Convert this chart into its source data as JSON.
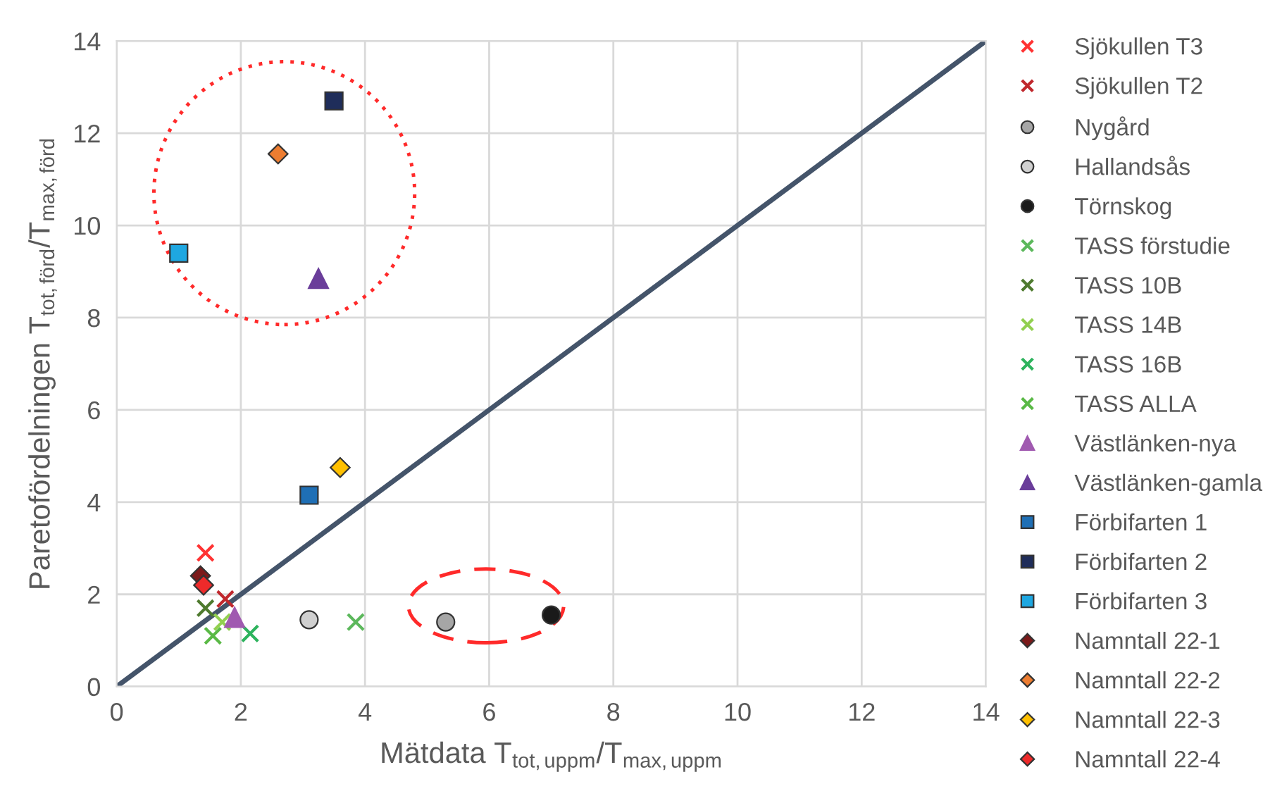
{
  "chart_data": {
    "type": "scatter",
    "xlabel": "Mätdata T$_{tot,uppm}$/T$_{max,uppm}$",
    "ylabel": "Paretofördelningen T$_{tot,förd}$/T$_{max,förd}$",
    "xlim": [
      0,
      14
    ],
    "ylim": [
      0,
      14
    ],
    "xticks": [
      0,
      2,
      4,
      6,
      8,
      10,
      12,
      14
    ],
    "yticks": [
      0,
      2,
      4,
      6,
      8,
      10,
      12,
      14
    ],
    "grid": true,
    "legend": "right",
    "series": [
      {
        "type": "line",
        "color": "#44546a",
        "x": [
          0,
          14
        ],
        "values": [
          0,
          14
        ]
      },
      {
        "name": "Sjökullen T3",
        "color": "#ff3333",
        "marker": "cross",
        "x": [
          1.43
        ],
        "values": [
          2.9
        ]
      },
      {
        "name": "Sjökullen T2",
        "color": "#c0282d",
        "marker": "cross",
        "x": [
          1.75
        ],
        "values": [
          1.9
        ]
      },
      {
        "name": "Nygård",
        "color": "#a6a6a6",
        "marker": "circle",
        "x": [
          5.3
        ],
        "values": [
          1.4
        ]
      },
      {
        "name": "Hallandsås",
        "color": "#d0d0d0",
        "marker": "circle",
        "x": [
          3.1
        ],
        "values": [
          1.45
        ]
      },
      {
        "name": "Törnskog",
        "color": "#1a1a1a",
        "marker": "circle",
        "x": [
          7.0
        ],
        "values": [
          1.55
        ]
      },
      {
        "name": "TASS förstudie",
        "color": "#5cb85c",
        "marker": "cross",
        "x": [
          3.85
        ],
        "values": [
          1.4
        ]
      },
      {
        "name": "TASS 10B",
        "color": "#4e7a2e",
        "marker": "cross",
        "x": [
          1.43
        ],
        "values": [
          1.7
        ]
      },
      {
        "name": "TASS 14B",
        "color": "#92d050",
        "marker": "cross",
        "x": [
          1.7
        ],
        "values": [
          1.4
        ]
      },
      {
        "name": "TASS 16B",
        "color": "#2db35d",
        "marker": "cross",
        "x": [
          2.15
        ],
        "values": [
          1.15
        ]
      },
      {
        "name": "TASS ALLA",
        "color": "#5ab946",
        "marker": "cross",
        "x": [
          1.55
        ],
        "values": [
          1.1
        ]
      },
      {
        "name": "Västlänken-nya",
        "color": "#a05ab0",
        "marker": "triangle",
        "x": [
          1.9
        ],
        "values": [
          1.5
        ]
      },
      {
        "name": "Västlänken-gamla",
        "color": "#6a3d9a",
        "marker": "triangle",
        "x": [
          3.25
        ],
        "values": [
          8.85
        ]
      },
      {
        "name": "Förbifarten 1",
        "color": "#1f6fb5",
        "marker": "square",
        "x": [
          3.1
        ],
        "values": [
          4.15
        ]
      },
      {
        "name": "Förbifarten 2",
        "color": "#1f2d5a",
        "marker": "square",
        "x": [
          3.5
        ],
        "values": [
          12.7
        ]
      },
      {
        "name": "Förbifarten 3",
        "color": "#1ea7e1",
        "marker": "square",
        "x": [
          1.0
        ],
        "values": [
          9.4
        ]
      },
      {
        "name": "Namntall 22-1",
        "color": "#7b1a1a",
        "marker": "diamond",
        "x": [
          1.35
        ],
        "values": [
          2.4
        ]
      },
      {
        "name": "Namntall 22-2",
        "color": "#ed7d31",
        "marker": "diamond",
        "x": [
          2.6
        ],
        "values": [
          11.55
        ]
      },
      {
        "name": "Namntall 22-3",
        "color": "#ffc000",
        "marker": "diamond",
        "x": [
          3.6
        ],
        "values": [
          4.75
        ]
      },
      {
        "name": "Namntall 22-4",
        "color": "#ee2a2a",
        "marker": "diamond",
        "x": [
          1.4
        ],
        "values": [
          2.2
        ]
      }
    ]
  }
}
